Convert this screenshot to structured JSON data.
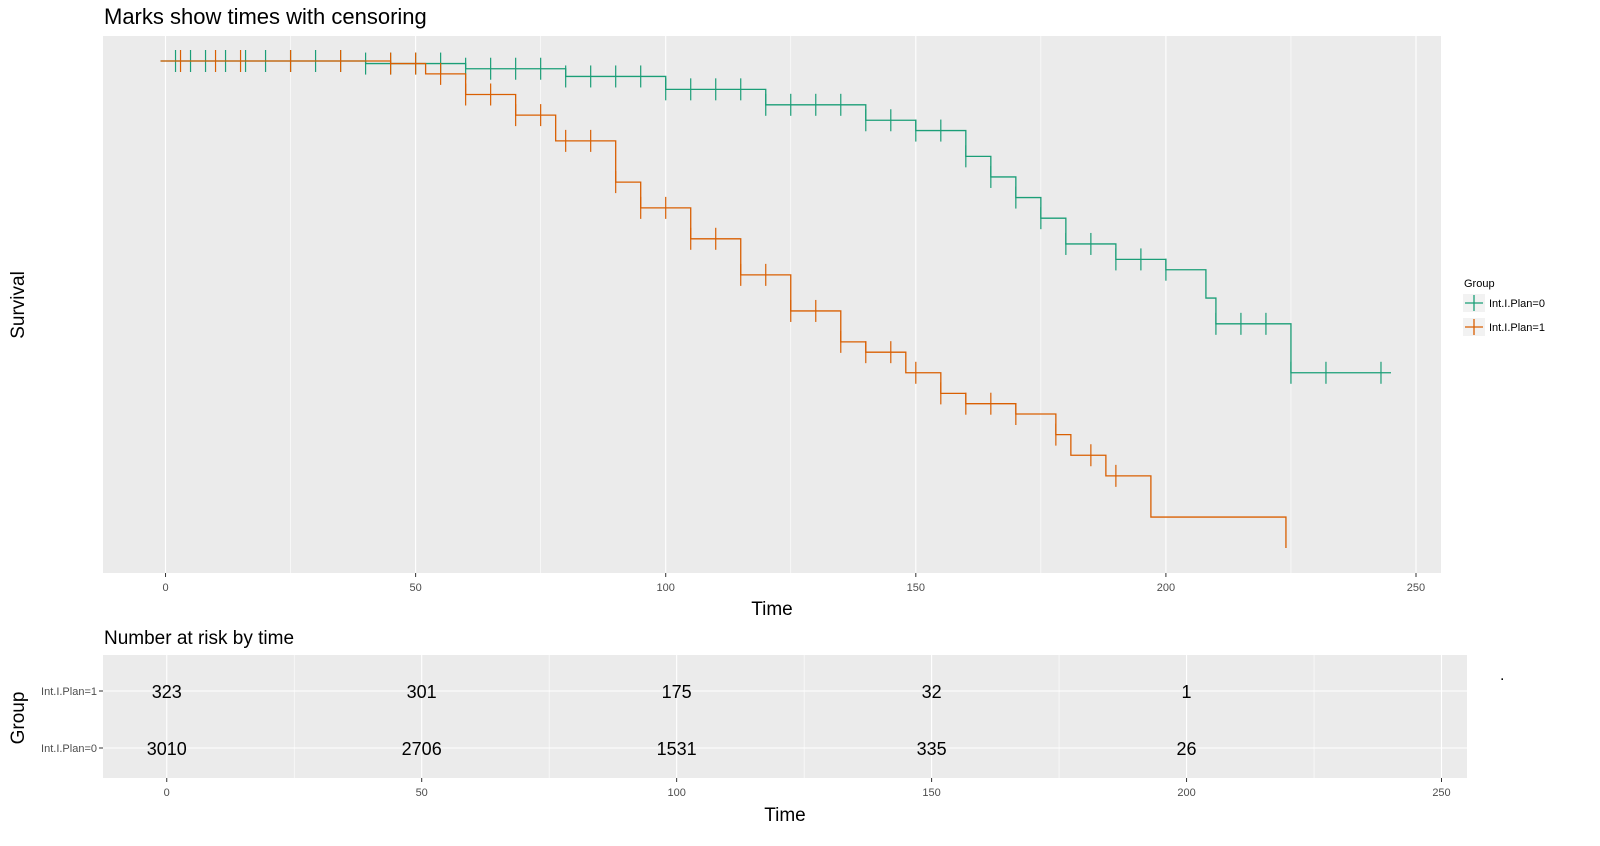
{
  "chart_data": [
    {
      "type": "line",
      "title": "Marks show times with censoring",
      "xlabel": "Time",
      "ylabel": "Survival",
      "xlim": [
        -12.5,
        255
      ],
      "ylim": [
        0.0,
        1.0
      ],
      "x_ticks": [
        0,
        50,
        100,
        150,
        200,
        250
      ],
      "y_ticks_shown": false,
      "grid": true,
      "legend": {
        "title": "Group",
        "position": "right"
      },
      "series": [
        {
          "name": "Int.I.Plan=0",
          "color": "#1b9e77",
          "step_x": [
            0,
            40,
            60,
            80,
            100,
            120,
            140,
            150,
            160,
            165,
            170,
            175,
            180,
            190,
            200,
            208,
            210,
            225,
            245
          ],
          "step_y": [
            0.985,
            0.98,
            0.97,
            0.955,
            0.93,
            0.9,
            0.87,
            0.85,
            0.8,
            0.76,
            0.72,
            0.68,
            0.63,
            0.6,
            0.58,
            0.525,
            0.475,
            0.38,
            0.38
          ],
          "censor_x": [
            2,
            5,
            8,
            12,
            16,
            20,
            25,
            30,
            35,
            40,
            45,
            50,
            55,
            60,
            65,
            70,
            75,
            80,
            85,
            90,
            95,
            100,
            105,
            110,
            115,
            120,
            125,
            130,
            135,
            140,
            145,
            150,
            155,
            160,
            165,
            170,
            175,
            180,
            185,
            190,
            195,
            200,
            210,
            215,
            220,
            225,
            232,
            243
          ]
        },
        {
          "name": "Int.I.Plan=1",
          "color": "#d95f02",
          "step_x": [
            0,
            45,
            52,
            60,
            70,
            78,
            90,
            95,
            105,
            115,
            125,
            135,
            140,
            148,
            155,
            160,
            170,
            178,
            181,
            188,
            197,
            224
          ],
          "step_y": [
            0.985,
            0.98,
            0.96,
            0.92,
            0.88,
            0.83,
            0.75,
            0.7,
            0.64,
            0.57,
            0.5,
            0.44,
            0.42,
            0.38,
            0.34,
            0.32,
            0.3,
            0.26,
            0.22,
            0.18,
            0.1,
            0.04
          ],
          "censor_x": [
            3,
            10,
            15,
            25,
            35,
            45,
            50,
            55,
            60,
            65,
            70,
            75,
            80,
            85,
            90,
            95,
            100,
            105,
            110,
            115,
            120,
            125,
            130,
            135,
            140,
            145,
            150,
            155,
            160,
            165,
            170,
            178,
            185,
            190
          ]
        }
      ]
    },
    {
      "type": "table",
      "title": "Number at risk by time",
      "xlabel": "Time",
      "ylabel": "Group",
      "xlim": [
        -12.5,
        255
      ],
      "x_ticks": [
        0,
        50,
        100,
        150,
        200,
        250
      ],
      "rows": [
        {
          "name": "Int.I.Plan=1",
          "times": [
            0,
            50,
            100,
            150,
            200
          ],
          "values": [
            "323",
            "301",
            "175",
            "32",
            "1"
          ]
        },
        {
          "name": "Int.I.Plan=0",
          "times": [
            0,
            50,
            100,
            150,
            200
          ],
          "values": [
            "3010",
            "2706",
            "1531",
            "335",
            "26"
          ]
        }
      ]
    }
  ],
  "colors": {
    "panel_bg": "#ebebeb",
    "grid": "#ffffff",
    "tick_text": "#4d4d4d"
  },
  "stray_mark": "."
}
